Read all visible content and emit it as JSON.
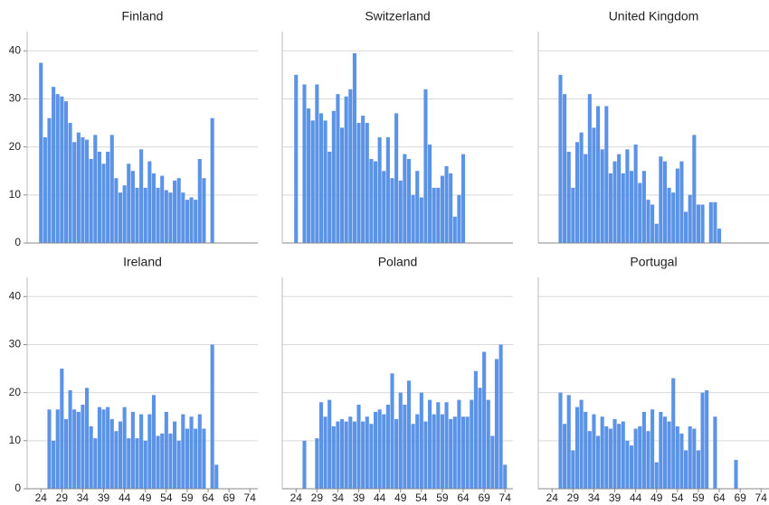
{
  "chart_data": [
    {
      "type": "bar",
      "title": "Finland",
      "color": "#5b93e6",
      "x": [
        24,
        25,
        26,
        27,
        28,
        29,
        30,
        31,
        32,
        33,
        34,
        35,
        36,
        37,
        38,
        39,
        40,
        41,
        42,
        43,
        44,
        45,
        46,
        47,
        48,
        49,
        50,
        51,
        52,
        53,
        54,
        55,
        56,
        57,
        58,
        59,
        60,
        61,
        62,
        63,
        64,
        65
      ],
      "values": [
        37.5,
        22,
        26,
        32.5,
        31,
        30.5,
        29.5,
        25,
        21,
        23,
        22,
        21.5,
        17.5,
        22.5,
        19,
        16.5,
        19,
        22.5,
        13.5,
        10.5,
        12,
        16.5,
        15,
        11.5,
        19.5,
        11.5,
        17,
        14.5,
        11.5,
        14,
        11,
        10.5,
        13,
        13.5,
        10.5,
        9,
        9.5,
        9,
        17.5,
        13.5,
        null,
        26
      ],
      "xlim": [
        20.7,
        75.9
      ],
      "ylim": [
        0,
        44
      ],
      "yticks": [
        0,
        10,
        20,
        30,
        40
      ],
      "xticks": [
        24,
        29,
        34,
        39,
        44,
        49,
        54,
        59,
        64,
        69,
        74
      ],
      "grid": true
    },
    {
      "type": "bar",
      "title": "Switzerland",
      "color": "#5b93e6",
      "x": [
        24,
        25,
        26,
        27,
        28,
        29,
        30,
        31,
        32,
        33,
        34,
        35,
        36,
        37,
        38,
        39,
        40,
        41,
        42,
        43,
        44,
        45,
        46,
        47,
        48,
        49,
        50,
        51,
        52,
        53,
        54,
        55,
        56,
        57,
        58,
        59,
        60,
        61,
        62,
        63,
        64
      ],
      "values": [
        35,
        null,
        33,
        28,
        25.5,
        33,
        27,
        25.5,
        19,
        27.5,
        31,
        24,
        30.5,
        32,
        39.5,
        25,
        26.5,
        25,
        17.5,
        17,
        22,
        15,
        22,
        13.5,
        27,
        13,
        18.5,
        17.5,
        10,
        15,
        9.5,
        32,
        20.5,
        11.5,
        11.5,
        14,
        16,
        14.5,
        5.5,
        10,
        18.5
      ],
      "xlim": [
        20.7,
        75.9
      ],
      "ylim": [
        0,
        44
      ],
      "yticks": [
        0,
        10,
        20,
        30,
        40
      ],
      "xticks": [
        24,
        29,
        34,
        39,
        44,
        49,
        54,
        59,
        64,
        69,
        74
      ],
      "grid": true
    },
    {
      "type": "bar",
      "title": "United Kingdom",
      "color": "#5b93e6",
      "x": [
        26,
        27,
        28,
        29,
        30,
        31,
        32,
        33,
        34,
        35,
        36,
        37,
        38,
        39,
        40,
        41,
        42,
        43,
        44,
        45,
        46,
        47,
        48,
        49,
        50,
        51,
        52,
        53,
        54,
        55,
        56,
        57,
        58,
        59,
        60,
        61,
        62,
        63,
        64
      ],
      "values": [
        35,
        31,
        19,
        11.5,
        21,
        23,
        18.5,
        31,
        24,
        28.5,
        19.5,
        28.5,
        14.5,
        17,
        18.5,
        14.5,
        19.5,
        15,
        20.5,
        12.5,
        15,
        9,
        8,
        4,
        18,
        17,
        11.5,
        10.5,
        15.5,
        17,
        6.5,
        10,
        22.5,
        8,
        8,
        null,
        8.5,
        8.5,
        3
      ],
      "xlim": [
        20.7,
        75.9
      ],
      "ylim": [
        0,
        44
      ],
      "yticks": [
        0,
        10,
        20,
        30,
        40
      ],
      "xticks": [
        24,
        29,
        34,
        39,
        44,
        49,
        54,
        59,
        64,
        69,
        74
      ],
      "grid": true
    },
    {
      "type": "bar",
      "title": "Ireland",
      "color": "#5b93e6",
      "x": [
        26,
        27,
        28,
        29,
        30,
        31,
        32,
        33,
        34,
        35,
        36,
        37,
        38,
        39,
        40,
        41,
        42,
        43,
        44,
        45,
        46,
        47,
        48,
        49,
        50,
        51,
        52,
        53,
        54,
        55,
        56,
        57,
        58,
        59,
        60,
        61,
        62,
        63,
        64,
        65,
        66
      ],
      "values": [
        16.5,
        10,
        16.5,
        25,
        14.5,
        20.5,
        16.5,
        16,
        17.5,
        21,
        13,
        10.5,
        17,
        16.5,
        17,
        14.5,
        12,
        14,
        17,
        10.5,
        16,
        10.5,
        15.5,
        10,
        15.5,
        19.5,
        11,
        11.5,
        16,
        11.5,
        14,
        10,
        15.5,
        12.5,
        15,
        12.5,
        15.5,
        12.5,
        null,
        30,
        5
      ],
      "xlim": [
        20.7,
        75.9
      ],
      "ylim": [
        0,
        44
      ],
      "yticks": [
        0,
        10,
        20,
        30,
        40
      ],
      "xticks": [
        24,
        29,
        34,
        39,
        44,
        49,
        54,
        59,
        64,
        69,
        74
      ],
      "grid": true
    },
    {
      "type": "bar",
      "title": "Poland",
      "color": "#5b93e6",
      "x": [
        26,
        27,
        28,
        29,
        30,
        31,
        32,
        33,
        34,
        35,
        36,
        37,
        38,
        39,
        40,
        41,
        42,
        43,
        44,
        45,
        46,
        47,
        48,
        49,
        50,
        51,
        52,
        53,
        54,
        55,
        56,
        57,
        58,
        59,
        60,
        61,
        62,
        63,
        64,
        65,
        66,
        67,
        68,
        69,
        70,
        71,
        72,
        73,
        74
      ],
      "values": [
        10,
        null,
        null,
        10.5,
        18,
        15,
        18.5,
        13,
        14,
        14.5,
        14,
        15,
        14,
        17.5,
        14,
        15,
        13.5,
        16,
        16.5,
        15.5,
        17.5,
        24,
        14.5,
        20,
        17.5,
        22.5,
        13.5,
        15.5,
        20,
        14,
        18.5,
        15.5,
        18,
        15.5,
        18,
        14.5,
        15,
        18.5,
        15,
        15,
        18.5,
        24.5,
        21,
        28.5,
        18.5,
        11,
        27,
        30,
        5
      ],
      "xlim": [
        20.7,
        75.9
      ],
      "ylim": [
        0,
        44
      ],
      "yticks": [
        0,
        10,
        20,
        30,
        40
      ],
      "xticks": [
        24,
        29,
        34,
        39,
        44,
        49,
        54,
        59,
        64,
        69,
        74
      ],
      "grid": true
    },
    {
      "type": "bar",
      "title": "Portugal",
      "color": "#5b93e6",
      "x": [
        26,
        27,
        28,
        29,
        30,
        31,
        32,
        33,
        34,
        35,
        36,
        37,
        38,
        39,
        40,
        41,
        42,
        43,
        44,
        45,
        46,
        47,
        48,
        49,
        50,
        51,
        52,
        53,
        54,
        55,
        56,
        57,
        58,
        59,
        60,
        61,
        62,
        63,
        64,
        65,
        66,
        67,
        68
      ],
      "values": [
        20,
        13.5,
        19.5,
        8,
        17,
        18.5,
        16,
        12,
        15.5,
        11,
        15,
        13,
        12.5,
        14.5,
        13.5,
        14,
        10,
        9,
        12.5,
        13,
        16,
        12,
        16.5,
        5.5,
        16,
        15,
        14,
        23,
        13,
        11.5,
        8,
        13,
        12.5,
        8,
        20,
        20.5,
        null,
        15,
        null,
        null,
        null,
        null,
        6
      ],
      "xlim": [
        20.7,
        75.9
      ],
      "ylim": [
        0,
        44
      ],
      "yticks": [
        0,
        10,
        20,
        30,
        40
      ],
      "xticks": [
        24,
        29,
        34,
        39,
        44,
        49,
        54,
        59,
        64,
        69,
        74
      ],
      "grid": true
    }
  ]
}
